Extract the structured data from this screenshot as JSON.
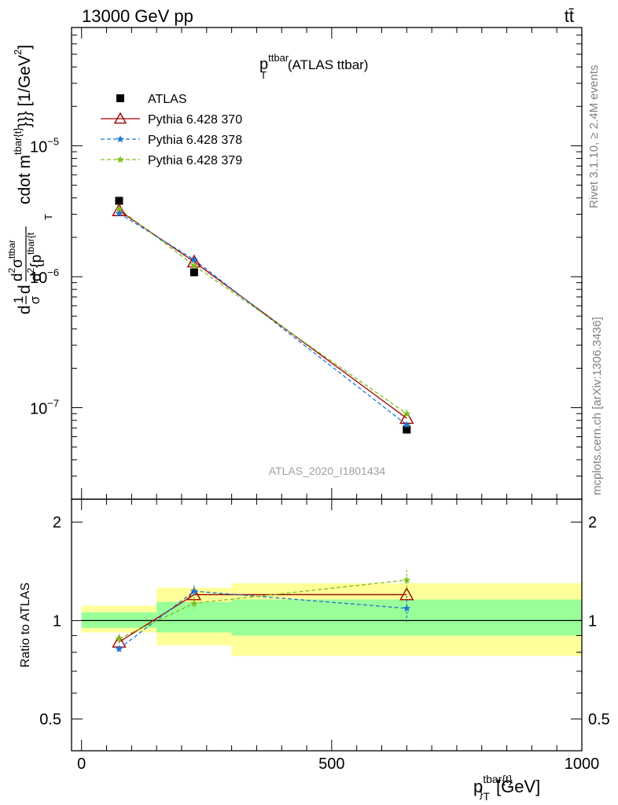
{
  "header": {
    "left": "13000 GeV pp",
    "right": "tt̄"
  },
  "side_labels": {
    "rivet": "Rivet 3.1.10, ≥ 2.4M events",
    "mcplots": "mcplots.cern.ch [arXiv:1306.3436]"
  },
  "main": {
    "title_main": "p",
    "title_sup": "ttbar",
    "title_sub": "T",
    "title_rest": " (ATLAS ttbar)",
    "ylabel": "d 1/σ d d²σ^ttbar / d² {p^tbar{t}}_T cdot m^tbar{t}}}} [1/GeV²]",
    "ylabel_parts": {
      "a": "d",
      "frac1_num": "1",
      "frac1_den": "σ",
      "b": "d",
      "frac2_num": "d",
      "frac2_num_sup_2": "2",
      "frac2_num_sigma": "σ",
      "frac2_num_sup": "ttbar",
      "frac2_den": "d",
      "frac2_den_sup": "2",
      "frac2_den_rest": "{p",
      "frac2_den_sup2": "tbar{t",
      "sub_T": "T",
      "cdot": "cdot m",
      "cdot_sup": "tbar{t}",
      "tail": "}}} [1/GeV",
      "tail_sup": "2",
      "tail_end": "]"
    },
    "watermark": "ATLAS_2020_I1801434"
  },
  "ratio": {
    "ylabel": "Ratio to ATLAS"
  },
  "xaxis": {
    "label_main": "p",
    "label_sup": "tbar{t}",
    "label_sub": "}",
    "label_sub2": "T",
    "label_unit": " [GeV]"
  },
  "colors": {
    "atlas": "#000000",
    "p370": "#a00000",
    "p378": "#1f77d4",
    "p379": "#7fbf1f",
    "band_inner": "#99ff99",
    "band_outer": "#ffff99"
  },
  "chart_data": [
    {
      "type": "scatter",
      "title": "p_T^ttbar (ATLAS ttbar)",
      "xlabel": "p^tbar{t}}_T [GeV]",
      "ylabel": "d 1/σ d d²σ^ttbar / d² {p^tbar{t}_T cdot m^tbar{t}}}} [1/GeV²]",
      "xlim": [
        -20,
        1000
      ],
      "ylim": [
        2e-08,
        8e-05
      ],
      "yscale": "log",
      "x_ticks": [
        0,
        500,
        1000
      ],
      "y_tick_labels": [
        {
          "value": 1e-07,
          "base": "10",
          "exp": "−7"
        },
        {
          "value": 1e-06,
          "base": "10",
          "exp": "−6"
        },
        {
          "value": 1e-05,
          "base": "10",
          "exp": "−5"
        }
      ],
      "legend_position": "top-left",
      "series": [
        {
          "name": "ATLAS",
          "marker": "square",
          "x": [
            75,
            225,
            650
          ],
          "y": [
            3.8e-06,
            1.08e-06,
            6.8e-08
          ],
          "xerr": [
            75,
            75,
            350
          ]
        },
        {
          "name": "Pythia 6.428 370",
          "marker": "triangle",
          "line": "solid",
          "x": [
            75,
            225,
            650
          ],
          "y": [
            3.2e-06,
            1.3e-06,
            8.3e-08
          ]
        },
        {
          "name": "Pythia 6.428 378",
          "marker": "star",
          "line": "dashed",
          "x": [
            75,
            225,
            650
          ],
          "y": [
            3.05e-06,
            1.35e-06,
            7.4e-08
          ]
        },
        {
          "name": "Pythia 6.428 379",
          "marker": "star",
          "line": "dashed",
          "x": [
            75,
            225,
            650
          ],
          "y": [
            3.3e-06,
            1.22e-06,
            9e-08
          ],
          "yerr_frac": [
            0.03,
            0.05,
            0.07
          ]
        }
      ]
    },
    {
      "type": "line",
      "ylabel": "Ratio to ATLAS",
      "xlim": [
        -20,
        1000
      ],
      "ylim": [
        0.4,
        2.35
      ],
      "yscale": "log",
      "y_ticks": [
        0.5,
        1,
        2
      ],
      "y_tick_labels": [
        "0.5",
        "1",
        "2"
      ],
      "x_ticks": [
        0,
        500,
        1000
      ],
      "bands": [
        {
          "x0": 0,
          "x1": 150,
          "inner": [
            0.95,
            1.06
          ],
          "outer": [
            0.92,
            1.11
          ]
        },
        {
          "x0": 150,
          "x1": 300,
          "inner": [
            0.92,
            1.14
          ],
          "outer": [
            0.84,
            1.26
          ]
        },
        {
          "x0": 300,
          "x1": 1000,
          "inner": [
            0.9,
            1.16
          ],
          "outer": [
            0.78,
            1.3
          ]
        }
      ],
      "series": [
        {
          "name": "Pythia 6.428 370",
          "x": [
            75,
            225,
            650
          ],
          "y": [
            0.86,
            1.2,
            1.2
          ]
        },
        {
          "name": "Pythia 6.428 378",
          "x": [
            75,
            225,
            650
          ],
          "y": [
            0.82,
            1.23,
            1.09
          ],
          "yerr": [
            0.02,
            0.05,
            0.1
          ]
        },
        {
          "name": "Pythia 6.428 379",
          "x": [
            75,
            225,
            650
          ],
          "y": [
            0.88,
            1.13,
            1.33
          ],
          "yerr": [
            0.03,
            0.05,
            0.1
          ]
        }
      ]
    }
  ]
}
